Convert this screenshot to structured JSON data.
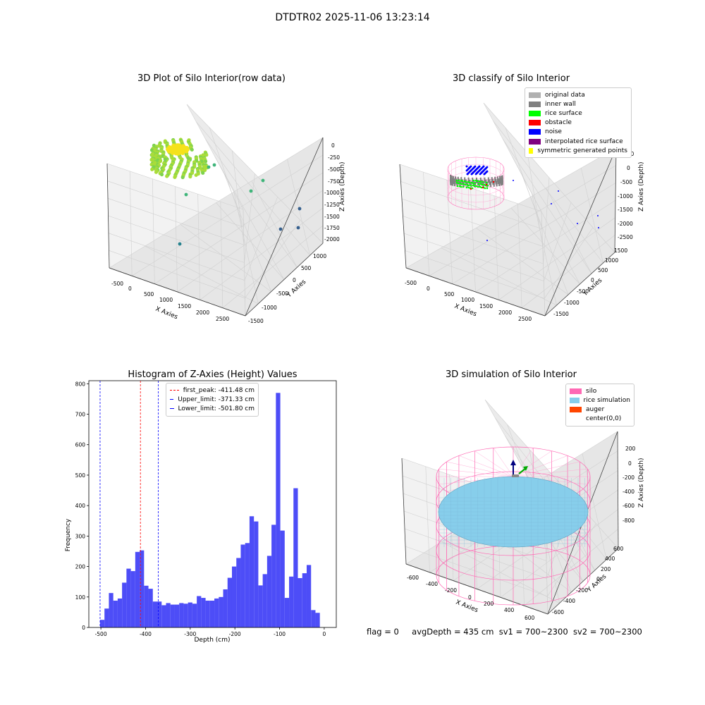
{
  "figure": {
    "suptitle": "DTDTR02 2025-11-06 13:23:14",
    "status": {
      "flag": "flag = 0",
      "avg_depth": "avgDepth = 435 cm",
      "sv1": "sv1 = 700~2300",
      "sv2": "sv2 = 700~2300"
    }
  },
  "chart_data": [
    {
      "type": "scatter",
      "title": "3D Plot of Silo Interior(row data)",
      "xlabel": "X Axies",
      "ylabel": "Y Axies",
      "zlabel": "Z Axies (Depth)",
      "x_ticks": [
        "-500",
        "0",
        "500",
        "1000",
        "1500",
        "2000",
        "2500"
      ],
      "y_ticks": [
        "-1500",
        "-1000",
        "-500",
        "0",
        "500",
        "1000"
      ],
      "z_ticks": [
        "0",
        "-250",
        "-500",
        "-750",
        "-1000",
        "-1250",
        "-1500",
        "-1750",
        "-2000"
      ],
      "colormap": [
        "#f5e21c",
        "#7fd34e",
        "#3fb57a",
        "#26828e",
        "#355f8d"
      ]
    },
    {
      "type": "scatter",
      "title": "3D classify of Silo Interior",
      "xlabel": "X Axies",
      "ylabel": "Y Axies",
      "zlabel": "Z Axies (Depth)",
      "x_ticks": [
        "-500",
        "0",
        "500",
        "1000",
        "1500",
        "2000",
        "2500"
      ],
      "y_ticks": [
        "-1500",
        "-1000",
        "-500",
        "0",
        "500",
        "1000",
        "1500"
      ],
      "z_ticks": [
        "500",
        "0",
        "-500",
        "-1000",
        "-1500",
        "-2000",
        "-2500"
      ],
      "legend_position": "top-right",
      "legend": [
        {
          "label": "original data",
          "color": "#b0b0b0"
        },
        {
          "label": "inner wall",
          "color": "#808080"
        },
        {
          "label": "rice surface",
          "color": "#00ff00"
        },
        {
          "label": "obstacle",
          "color": "#ff0000"
        },
        {
          "label": "noise",
          "color": "#0000ff"
        },
        {
          "label": "interpolated rice surface",
          "color": "#800080"
        },
        {
          "label": "symmetric generated points",
          "color": "#ffff00"
        }
      ]
    },
    {
      "type": "bar",
      "title": "Histogram of Z-Axies (Height) Values",
      "xlabel": "Depth (cm)",
      "ylabel": "Frequency",
      "xlim": [
        -527,
        27
      ],
      "ylim": [
        0,
        810
      ],
      "x_ticks": [
        -500,
        -400,
        -300,
        -200,
        -100,
        0
      ],
      "y_ticks": [
        0,
        100,
        200,
        300,
        400,
        500,
        600,
        700,
        800
      ],
      "bin_start": -501.8,
      "bin_width": 9.84,
      "bar_color": "#4d4df7",
      "values": [
        25,
        62,
        113,
        88,
        95,
        147,
        193,
        185,
        248,
        253,
        137,
        127,
        85,
        85,
        73,
        80,
        75,
        75,
        80,
        78,
        82,
        78,
        103,
        97,
        88,
        88,
        95,
        100,
        125,
        163,
        200,
        228,
        272,
        277,
        365,
        348,
        138,
        175,
        235,
        337,
        770,
        318,
        97,
        167,
        457,
        162,
        178,
        205,
        57,
        48
      ],
      "lines": [
        {
          "label": "first_peak: -411.48 cm",
          "x": -411.48,
          "color": "#ff0000"
        },
        {
          "label": "Upper_limit: -371.33 cm",
          "x": -371.33,
          "color": "#0000ff"
        },
        {
          "label": "Lower_limit: -501.80 cm",
          "x": -501.8,
          "color": "#0000ff"
        }
      ],
      "legend_position": "upper-center"
    },
    {
      "type": "scatter",
      "title": "3D simulation of Silo Interior",
      "xlabel": "X Axies",
      "ylabel": "Y Axies",
      "zlabel": "Z Axies (Depth)",
      "x_ticks": [
        "-600",
        "-400",
        "-200",
        "0",
        "200",
        "400",
        "600"
      ],
      "y_ticks": [
        "-600",
        "-400",
        "-200",
        "0",
        "200",
        "400",
        "600"
      ],
      "z_ticks": [
        "200",
        "0",
        "-200",
        "-400",
        "-600",
        "-800"
      ],
      "legend_position": "top-right",
      "legend": [
        {
          "label": "silo",
          "color": "#ff69b4"
        },
        {
          "label": "rice simulation",
          "color": "#87ceeb"
        },
        {
          "label": "auger",
          "color": "#ff4500"
        },
        {
          "label": "center(0,0)",
          "color": ""
        }
      ]
    }
  ]
}
